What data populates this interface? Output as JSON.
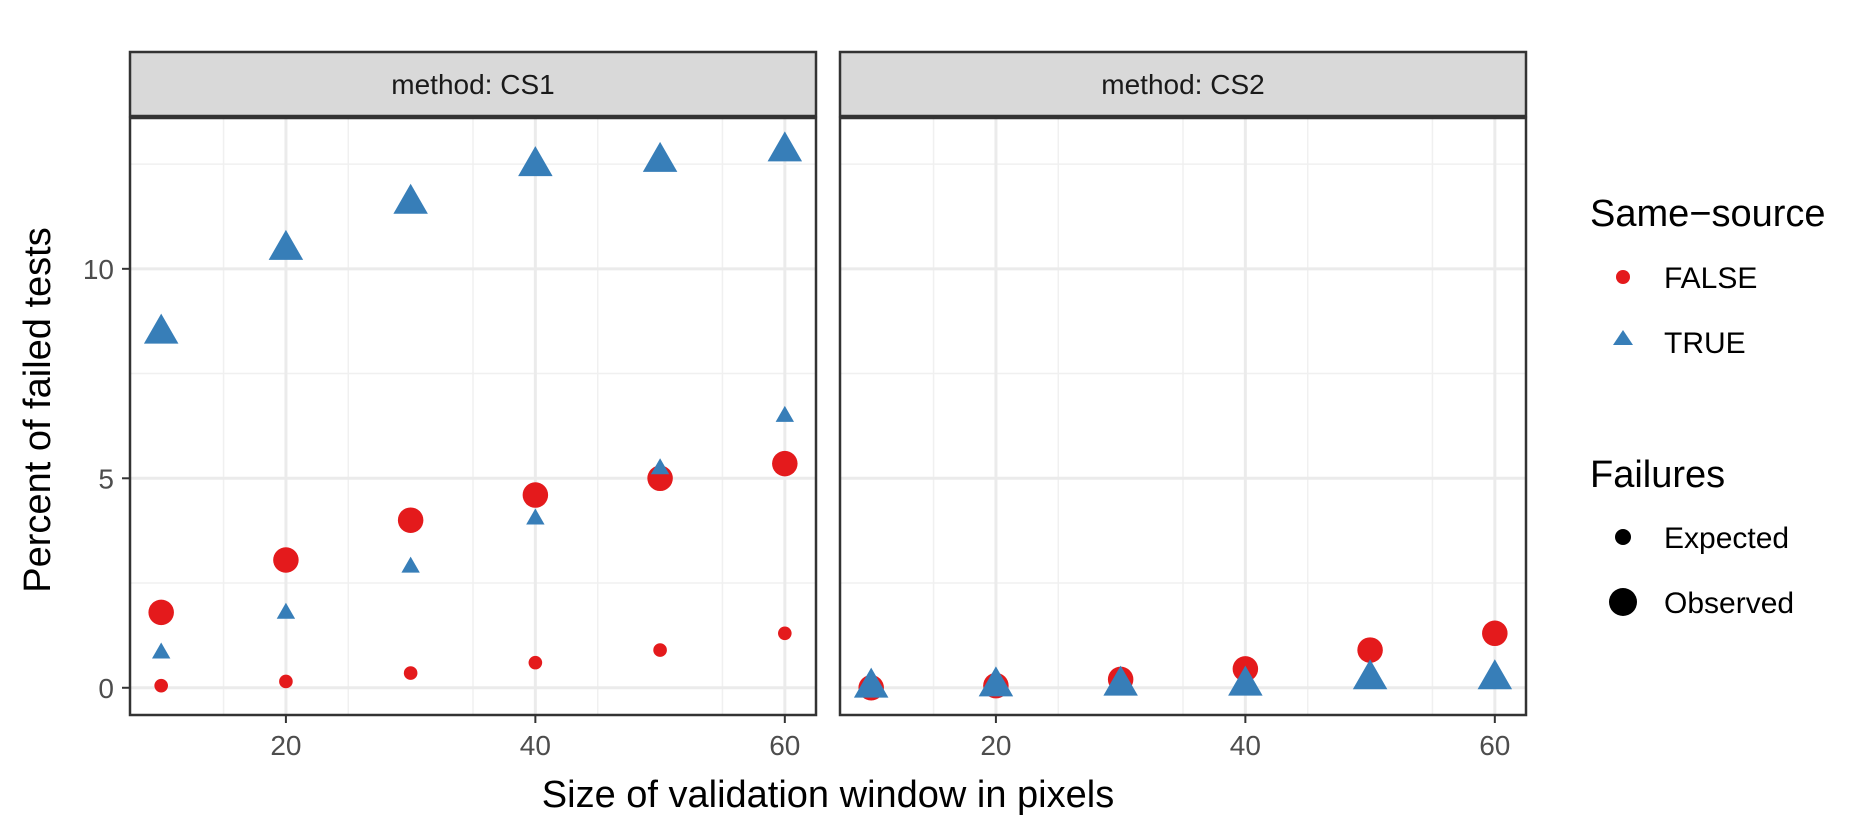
{
  "chart_data": {
    "type": "scatter",
    "xlabel": "Size of validation window in pixels",
    "ylabel": "Percent of failed tests",
    "xlim": [
      7.5,
      62.5
    ],
    "ylim": [
      -0.65,
      13.6
    ],
    "x_ticks": [
      20,
      40,
      60
    ],
    "y_ticks": [
      0,
      5,
      10
    ],
    "grid": true,
    "colors": {
      "FALSE": "#e41a1c",
      "TRUE": "#377eb8"
    },
    "panels": [
      {
        "strip": "method: CS1",
        "series": [
          {
            "same_source": "FALSE",
            "failures": "Expected",
            "x": [
              10,
              20,
              30,
              40,
              50,
              60
            ],
            "y": [
              0.05,
              0.15,
              0.35,
              0.6,
              0.9,
              1.3
            ]
          },
          {
            "same_source": "FALSE",
            "failures": "Observed",
            "x": [
              10,
              20,
              30,
              40,
              50,
              60
            ],
            "y": [
              1.8,
              3.05,
              4.0,
              4.6,
              5.0,
              5.35
            ]
          },
          {
            "same_source": "TRUE",
            "failures": "Expected",
            "x": [
              10,
              20,
              30,
              40,
              50,
              60
            ],
            "y": [
              0.85,
              1.8,
              2.9,
              4.05,
              5.25,
              6.5
            ]
          },
          {
            "same_source": "TRUE",
            "failures": "Observed",
            "x": [
              10,
              20,
              30,
              40,
              50,
              60
            ],
            "y": [
              8.5,
              10.5,
              11.6,
              12.5,
              12.6,
              12.85
            ]
          }
        ]
      },
      {
        "strip": "method: CS2",
        "series": [
          {
            "same_source": "FALSE",
            "failures": "Observed",
            "x": [
              10,
              20,
              30,
              40,
              50,
              60
            ],
            "y": [
              0.0,
              0.05,
              0.2,
              0.45,
              0.9,
              1.3
            ]
          },
          {
            "same_source": "TRUE",
            "failures": "Observed",
            "x": [
              10,
              20,
              30,
              40,
              50,
              60
            ],
            "y": [
              0.05,
              0.08,
              0.1,
              0.1,
              0.25,
              0.25
            ]
          }
        ]
      }
    ],
    "legend": {
      "same_source": {
        "title": "Same−source",
        "items": [
          "FALSE",
          "TRUE"
        ]
      },
      "failures": {
        "title": "Failures",
        "items": [
          "Expected",
          "Observed"
        ]
      },
      "placement": "right"
    }
  }
}
